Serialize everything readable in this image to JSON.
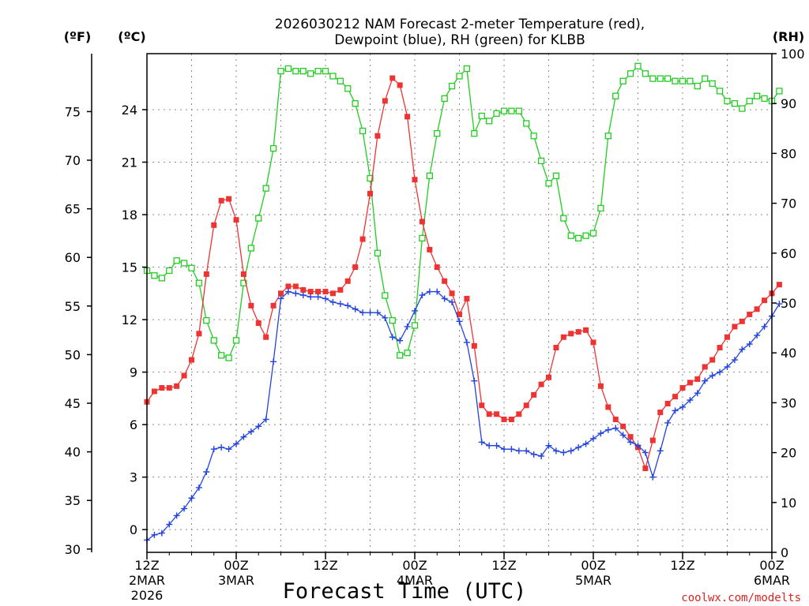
{
  "chart_data": {
    "type": "line",
    "title_line1": "2026030212 NAM Forecast 2-meter Temperature (red),",
    "title_line2": "Dewpoint (blue), RH (green) for KLBB",
    "xlabel": "Forecast Time (UTC)",
    "credit": "coolwx.com/modelts",
    "unit_f": "(ºF)",
    "unit_c": "(ºC)",
    "unit_rh": "(RH)",
    "x_start_hour": 0,
    "x_end_hour": 84,
    "x_ticks": [
      {
        "hour": 0,
        "label": "12Z",
        "sub": "2MAR",
        "sub2": "2026"
      },
      {
        "hour": 12,
        "label": "00Z",
        "sub": "3MAR",
        "sub2": ""
      },
      {
        "hour": 24,
        "label": "12Z",
        "sub": "",
        "sub2": ""
      },
      {
        "hour": 36,
        "label": "00Z",
        "sub": "4MAR",
        "sub2": ""
      },
      {
        "hour": 48,
        "label": "12Z",
        "sub": "",
        "sub2": ""
      },
      {
        "hour": 60,
        "label": "00Z",
        "sub": "5MAR",
        "sub2": ""
      },
      {
        "hour": 72,
        "label": "12Z",
        "sub": "",
        "sub2": ""
      },
      {
        "hour": 84,
        "label": "00Z",
        "sub": "6MAR",
        "sub2": ""
      }
    ],
    "c_axis": {
      "min": -1.3,
      "max": 27.2,
      "ticks": [
        0,
        3,
        6,
        9,
        12,
        15,
        18,
        21,
        24
      ]
    },
    "f_axis_ticks": [
      30,
      35,
      40,
      45,
      50,
      55,
      60,
      65,
      70,
      75
    ],
    "rh_axis": {
      "min": 0,
      "max": 100,
      "ticks": [
        0,
        10,
        20,
        30,
        40,
        50,
        60,
        70,
        80,
        90,
        100
      ]
    },
    "series": [
      {
        "name": "Temperature",
        "units": "C",
        "color": "#ee3333",
        "marker": "filled-square",
        "values": [
          7.3,
          7.9,
          8.1,
          8.1,
          8.2,
          8.8,
          9.7,
          11.2,
          14.6,
          17.4,
          18.8,
          18.9,
          17.7,
          14.6,
          12.8,
          11.8,
          11.0,
          12.8,
          13.5,
          13.9,
          13.9,
          13.7,
          13.6,
          13.6,
          13.6,
          13.5,
          13.7,
          14.2,
          15.0,
          16.6,
          19.2,
          22.5,
          24.5,
          25.8,
          25.4,
          23.6,
          20.0,
          17.6,
          16.0,
          15.0,
          14.2,
          13.5,
          12.3,
          13.2,
          10.5,
          7.1,
          6.6,
          6.6,
          6.3,
          6.3,
          6.6,
          7.1,
          7.7,
          8.3,
          8.7,
          10.4,
          11.0,
          11.2,
          11.3,
          11.4,
          10.7,
          8.2,
          7.0,
          6.3,
          5.9,
          5.3,
          4.7,
          3.5,
          5.1,
          6.7,
          7.2,
          7.6,
          8.1,
          8.4,
          8.6,
          9.3,
          9.7,
          10.4,
          11.0,
          11.6,
          11.9,
          12.3,
          12.6,
          13.1,
          13.5,
          14.0
        ]
      },
      {
        "name": "Dewpoint",
        "units": "C",
        "color": "#2244dd",
        "marker": "plus",
        "values": [
          -0.6,
          -0.3,
          -0.2,
          0.3,
          0.8,
          1.2,
          1.8,
          2.4,
          3.3,
          4.6,
          4.7,
          4.6,
          4.9,
          5.3,
          5.6,
          5.9,
          6.3,
          9.6,
          13.2,
          13.6,
          13.5,
          13.4,
          13.3,
          13.3,
          13.2,
          13.0,
          12.9,
          12.8,
          12.6,
          12.4,
          12.4,
          12.4,
          12.1,
          11.0,
          10.8,
          11.6,
          12.5,
          13.4,
          13.6,
          13.6,
          13.2,
          13.0,
          11.9,
          10.7,
          8.5,
          5.0,
          4.8,
          4.8,
          4.6,
          4.6,
          4.5,
          4.5,
          4.3,
          4.2,
          4.8,
          4.5,
          4.4,
          4.5,
          4.7,
          4.9,
          5.2,
          5.5,
          5.7,
          5.8,
          5.4,
          5.0,
          4.8,
          4.4,
          3.0,
          4.5,
          6.1,
          6.8,
          7.0,
          7.4,
          7.8,
          8.5,
          8.8,
          9.0,
          9.3,
          9.7,
          10.3,
          10.6,
          11.1,
          11.6,
          12.2,
          12.9
        ]
      },
      {
        "name": "RH",
        "units": "%",
        "color": "#22cc22",
        "marker": "open-square",
        "values": [
          56.5,
          55.5,
          55.0,
          56.5,
          58.5,
          58.0,
          57.0,
          54.0,
          46.5,
          42.5,
          39.5,
          39.0,
          42.5,
          54.0,
          61.0,
          67.0,
          73.0,
          81.0,
          96.5,
          97.0,
          96.5,
          96.5,
          96.0,
          96.5,
          96.5,
          95.5,
          94.5,
          93.0,
          90.0,
          84.5,
          75.0,
          60.0,
          51.5,
          46.5,
          39.5,
          40.0,
          45.5,
          63.0,
          75.5,
          84.0,
          91.0,
          93.5,
          95.5,
          97.0,
          84.0,
          87.5,
          86.5,
          88.0,
          88.5,
          88.5,
          88.5,
          86.0,
          83.5,
          78.5,
          74.0,
          75.5,
          67.0,
          63.5,
          63.0,
          63.5,
          64.0,
          69.0,
          83.5,
          91.5,
          94.5,
          96.0,
          97.5,
          96.0,
          95.0,
          95.0,
          95.0,
          94.5,
          94.5,
          94.5,
          93.5,
          95.0,
          94.0,
          92.5,
          90.5,
          90.0,
          89.0,
          90.5,
          91.5,
          91.0,
          90.5,
          92.5
        ]
      }
    ]
  }
}
